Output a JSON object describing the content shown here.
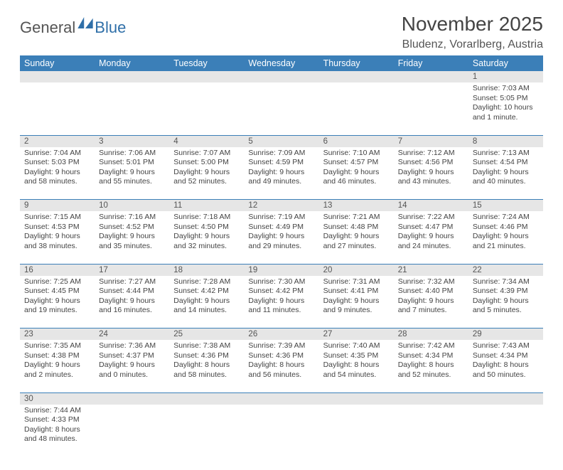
{
  "logo": {
    "text1": "General",
    "text2": "Blue"
  },
  "title": "November 2025",
  "location": "Bludenz, Vorarlberg, Austria",
  "colors": {
    "header_bg": "#3b7fb8",
    "header_text": "#ffffff",
    "daynum_bg": "#e6e6e6",
    "row_border": "#3b7fb8",
    "text": "#444444",
    "logo_gray": "#555555",
    "logo_blue": "#2f6fa8"
  },
  "weekdays": [
    "Sunday",
    "Monday",
    "Tuesday",
    "Wednesday",
    "Thursday",
    "Friday",
    "Saturday"
  ],
  "weeks": [
    {
      "nums": [
        "",
        "",
        "",
        "",
        "",
        "",
        "1"
      ],
      "cells": [
        null,
        null,
        null,
        null,
        null,
        null,
        {
          "sunrise": "Sunrise: 7:03 AM",
          "sunset": "Sunset: 5:05 PM",
          "day1": "Daylight: 10 hours",
          "day2": "and 1 minute."
        }
      ]
    },
    {
      "nums": [
        "2",
        "3",
        "4",
        "5",
        "6",
        "7",
        "8"
      ],
      "cells": [
        {
          "sunrise": "Sunrise: 7:04 AM",
          "sunset": "Sunset: 5:03 PM",
          "day1": "Daylight: 9 hours",
          "day2": "and 58 minutes."
        },
        {
          "sunrise": "Sunrise: 7:06 AM",
          "sunset": "Sunset: 5:01 PM",
          "day1": "Daylight: 9 hours",
          "day2": "and 55 minutes."
        },
        {
          "sunrise": "Sunrise: 7:07 AM",
          "sunset": "Sunset: 5:00 PM",
          "day1": "Daylight: 9 hours",
          "day2": "and 52 minutes."
        },
        {
          "sunrise": "Sunrise: 7:09 AM",
          "sunset": "Sunset: 4:59 PM",
          "day1": "Daylight: 9 hours",
          "day2": "and 49 minutes."
        },
        {
          "sunrise": "Sunrise: 7:10 AM",
          "sunset": "Sunset: 4:57 PM",
          "day1": "Daylight: 9 hours",
          "day2": "and 46 minutes."
        },
        {
          "sunrise": "Sunrise: 7:12 AM",
          "sunset": "Sunset: 4:56 PM",
          "day1": "Daylight: 9 hours",
          "day2": "and 43 minutes."
        },
        {
          "sunrise": "Sunrise: 7:13 AM",
          "sunset": "Sunset: 4:54 PM",
          "day1": "Daylight: 9 hours",
          "day2": "and 40 minutes."
        }
      ]
    },
    {
      "nums": [
        "9",
        "10",
        "11",
        "12",
        "13",
        "14",
        "15"
      ],
      "cells": [
        {
          "sunrise": "Sunrise: 7:15 AM",
          "sunset": "Sunset: 4:53 PM",
          "day1": "Daylight: 9 hours",
          "day2": "and 38 minutes."
        },
        {
          "sunrise": "Sunrise: 7:16 AM",
          "sunset": "Sunset: 4:52 PM",
          "day1": "Daylight: 9 hours",
          "day2": "and 35 minutes."
        },
        {
          "sunrise": "Sunrise: 7:18 AM",
          "sunset": "Sunset: 4:50 PM",
          "day1": "Daylight: 9 hours",
          "day2": "and 32 minutes."
        },
        {
          "sunrise": "Sunrise: 7:19 AM",
          "sunset": "Sunset: 4:49 PM",
          "day1": "Daylight: 9 hours",
          "day2": "and 29 minutes."
        },
        {
          "sunrise": "Sunrise: 7:21 AM",
          "sunset": "Sunset: 4:48 PM",
          "day1": "Daylight: 9 hours",
          "day2": "and 27 minutes."
        },
        {
          "sunrise": "Sunrise: 7:22 AM",
          "sunset": "Sunset: 4:47 PM",
          "day1": "Daylight: 9 hours",
          "day2": "and 24 minutes."
        },
        {
          "sunrise": "Sunrise: 7:24 AM",
          "sunset": "Sunset: 4:46 PM",
          "day1": "Daylight: 9 hours",
          "day2": "and 21 minutes."
        }
      ]
    },
    {
      "nums": [
        "16",
        "17",
        "18",
        "19",
        "20",
        "21",
        "22"
      ],
      "cells": [
        {
          "sunrise": "Sunrise: 7:25 AM",
          "sunset": "Sunset: 4:45 PM",
          "day1": "Daylight: 9 hours",
          "day2": "and 19 minutes."
        },
        {
          "sunrise": "Sunrise: 7:27 AM",
          "sunset": "Sunset: 4:44 PM",
          "day1": "Daylight: 9 hours",
          "day2": "and 16 minutes."
        },
        {
          "sunrise": "Sunrise: 7:28 AM",
          "sunset": "Sunset: 4:42 PM",
          "day1": "Daylight: 9 hours",
          "day2": "and 14 minutes."
        },
        {
          "sunrise": "Sunrise: 7:30 AM",
          "sunset": "Sunset: 4:42 PM",
          "day1": "Daylight: 9 hours",
          "day2": "and 11 minutes."
        },
        {
          "sunrise": "Sunrise: 7:31 AM",
          "sunset": "Sunset: 4:41 PM",
          "day1": "Daylight: 9 hours",
          "day2": "and 9 minutes."
        },
        {
          "sunrise": "Sunrise: 7:32 AM",
          "sunset": "Sunset: 4:40 PM",
          "day1": "Daylight: 9 hours",
          "day2": "and 7 minutes."
        },
        {
          "sunrise": "Sunrise: 7:34 AM",
          "sunset": "Sunset: 4:39 PM",
          "day1": "Daylight: 9 hours",
          "day2": "and 5 minutes."
        }
      ]
    },
    {
      "nums": [
        "23",
        "24",
        "25",
        "26",
        "27",
        "28",
        "29"
      ],
      "cells": [
        {
          "sunrise": "Sunrise: 7:35 AM",
          "sunset": "Sunset: 4:38 PM",
          "day1": "Daylight: 9 hours",
          "day2": "and 2 minutes."
        },
        {
          "sunrise": "Sunrise: 7:36 AM",
          "sunset": "Sunset: 4:37 PM",
          "day1": "Daylight: 9 hours",
          "day2": "and 0 minutes."
        },
        {
          "sunrise": "Sunrise: 7:38 AM",
          "sunset": "Sunset: 4:36 PM",
          "day1": "Daylight: 8 hours",
          "day2": "and 58 minutes."
        },
        {
          "sunrise": "Sunrise: 7:39 AM",
          "sunset": "Sunset: 4:36 PM",
          "day1": "Daylight: 8 hours",
          "day2": "and 56 minutes."
        },
        {
          "sunrise": "Sunrise: 7:40 AM",
          "sunset": "Sunset: 4:35 PM",
          "day1": "Daylight: 8 hours",
          "day2": "and 54 minutes."
        },
        {
          "sunrise": "Sunrise: 7:42 AM",
          "sunset": "Sunset: 4:34 PM",
          "day1": "Daylight: 8 hours",
          "day2": "and 52 minutes."
        },
        {
          "sunrise": "Sunrise: 7:43 AM",
          "sunset": "Sunset: 4:34 PM",
          "day1": "Daylight: 8 hours",
          "day2": "and 50 minutes."
        }
      ]
    },
    {
      "nums": [
        "30",
        "",
        "",
        "",
        "",
        "",
        ""
      ],
      "cells": [
        {
          "sunrise": "Sunrise: 7:44 AM",
          "sunset": "Sunset: 4:33 PM",
          "day1": "Daylight: 8 hours",
          "day2": "and 48 minutes."
        },
        null,
        null,
        null,
        null,
        null,
        null
      ]
    }
  ]
}
